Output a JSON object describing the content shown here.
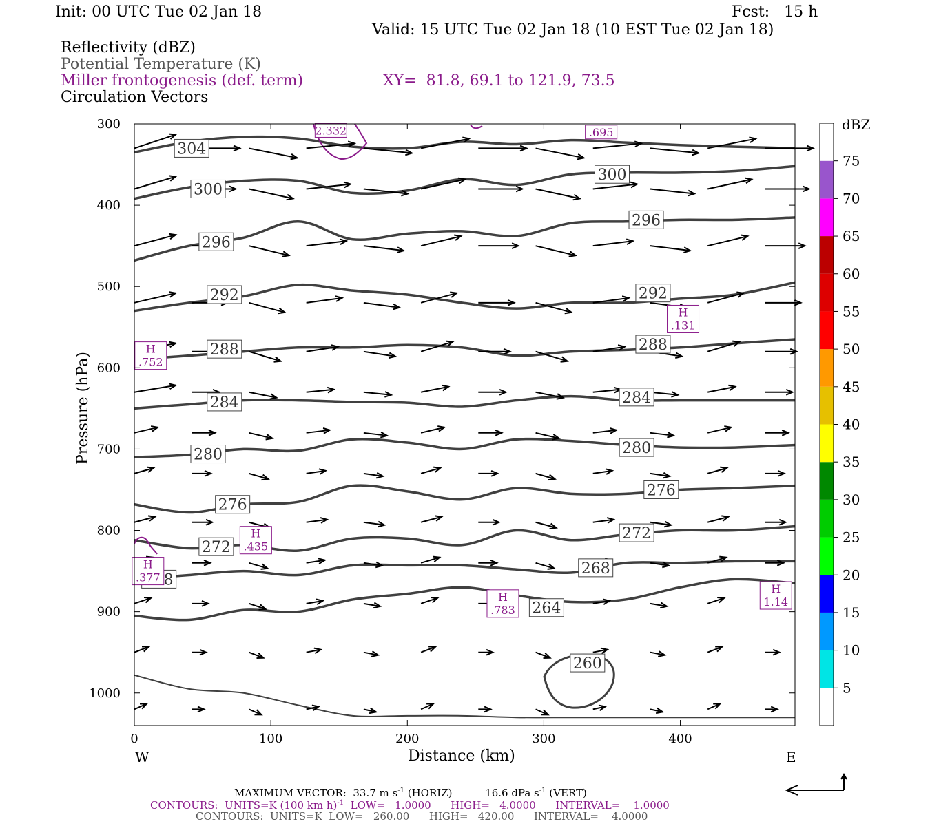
{
  "header": {
    "init": "Init: 00 UTC Tue 02 Jan 18",
    "fcst": "Fcst:   15 h",
    "valid": "Valid: 15 UTC Tue 02 Jan 18 (10 EST Tue 02 Jan 18)",
    "field1": "Reflectivity (dBZ)",
    "field2": "Potential Temperature (K)",
    "field3": "Miller frontogenesis (def. term)",
    "xy": "XY=  81.8, 69.1 to 121.9, 73.5",
    "field4": "Circulation Vectors"
  },
  "colors": {
    "theta": "#404040",
    "fronto": "#8a1a8a",
    "vectors": "#000000"
  },
  "chart_data": {
    "type": "line",
    "xlabel": "Distance (km)",
    "ylabel": "Pressure (hPa)",
    "xlim": [
      0,
      484
    ],
    "ylim": [
      1040,
      300
    ],
    "y_scale": "linear",
    "x_ticks": [
      "0",
      "100",
      "200",
      "300",
      "400"
    ],
    "y_ticks": [
      "300",
      "400",
      "500",
      "600",
      "700",
      "800",
      "900",
      "1000"
    ],
    "x_end_labels": {
      "left": "W",
      "right": "E"
    },
    "theta_contours": [
      {
        "value": 304,
        "label": "304",
        "x": [
          0,
          40,
          80,
          120,
          160,
          200,
          240,
          280,
          320,
          360,
          400,
          440,
          484
        ],
        "y": [
          335,
          322,
          316,
          318,
          328,
          330,
          322,
          325,
          320,
          323,
          326,
          328,
          330
        ]
      },
      {
        "value": 300,
        "label": "300",
        "x": [
          0,
          40,
          80,
          120,
          160,
          200,
          240,
          280,
          320,
          360,
          400,
          440,
          484
        ],
        "y": [
          392,
          378,
          370,
          370,
          385,
          382,
          368,
          375,
          362,
          360,
          360,
          358,
          352
        ]
      },
      {
        "value": 296,
        "label": "296",
        "x": [
          0,
          40,
          80,
          120,
          160,
          200,
          240,
          280,
          320,
          360,
          400,
          440,
          484
        ],
        "y": [
          468,
          450,
          440,
          420,
          442,
          435,
          432,
          438,
          422,
          420,
          418,
          418,
          415
        ]
      },
      {
        "value": 292,
        "label": "292",
        "x": [
          0,
          40,
          80,
          120,
          160,
          200,
          240,
          280,
          320,
          360,
          400,
          440,
          484
        ],
        "y": [
          530,
          520,
          512,
          498,
          505,
          510,
          520,
          527,
          520,
          520,
          515,
          510,
          495
        ]
      },
      {
        "value": 288,
        "label": "288",
        "x": [
          0,
          40,
          80,
          120,
          160,
          200,
          240,
          280,
          320,
          360,
          400,
          440,
          484
        ],
        "y": [
          590,
          585,
          580,
          575,
          575,
          572,
          575,
          585,
          580,
          578,
          575,
          570,
          565
        ]
      },
      {
        "value": 284,
        "label": "284",
        "x": [
          0,
          40,
          80,
          120,
          160,
          200,
          240,
          280,
          320,
          360,
          400,
          440,
          484
        ],
        "y": [
          650,
          645,
          640,
          640,
          642,
          643,
          648,
          640,
          635,
          640,
          640,
          640,
          640
        ]
      },
      {
        "value": 280,
        "label": "280",
        "x": [
          0,
          40,
          80,
          120,
          160,
          200,
          240,
          280,
          320,
          360,
          400,
          440,
          484
        ],
        "y": [
          710,
          707,
          700,
          702,
          688,
          692,
          700,
          688,
          690,
          695,
          698,
          698,
          695
        ]
      },
      {
        "value": 276,
        "label": "276",
        "x": [
          0,
          40,
          80,
          120,
          160,
          200,
          240,
          280,
          320,
          360,
          400,
          440,
          484
        ],
        "y": [
          768,
          778,
          768,
          765,
          745,
          752,
          762,
          748,
          755,
          755,
          750,
          748,
          745
        ]
      },
      {
        "value": 272,
        "label": "272",
        "x": [
          0,
          40,
          80,
          120,
          160,
          200,
          240,
          280,
          320,
          360,
          400,
          440,
          484
        ],
        "y": [
          812,
          822,
          818,
          825,
          810,
          810,
          818,
          800,
          812,
          805,
          800,
          800,
          795
        ]
      },
      {
        "value": 268,
        "label": "268",
        "x": [
          0,
          40,
          80,
          120,
          160,
          200,
          240,
          280,
          320,
          360,
          400,
          440,
          484
        ],
        "y": [
          860,
          855,
          850,
          855,
          843,
          843,
          843,
          848,
          852,
          840,
          840,
          838,
          838
        ]
      },
      {
        "value": 264,
        "label": "264",
        "x": [
          0,
          40,
          80,
          120,
          160,
          200,
          240,
          280,
          320,
          360,
          400,
          440,
          484
        ],
        "y": [
          905,
          910,
          898,
          900,
          885,
          878,
          870,
          880,
          888,
          885,
          870,
          860,
          865
        ]
      },
      {
        "value": 260,
        "label": "260",
        "x": [
          0,
          40,
          80,
          120,
          160,
          200,
          240,
          280,
          320,
          360,
          400,
          440,
          484
        ],
        "y": [
          978,
          995,
          1000,
          1015,
          1028,
          1028,
          1028,
          1030,
          1030,
          1030,
          1030,
          1030,
          1030
        ]
      }
    ],
    "theta_label_positions": [
      {
        "label": "304",
        "x": 42,
        "y": 330
      },
      {
        "label": "300",
        "x": 54,
        "y": 380
      },
      {
        "label": "296",
        "x": 60,
        "y": 445
      },
      {
        "label": "292",
        "x": 66,
        "y": 510
      },
      {
        "label": "288",
        "x": 66,
        "y": 577
      },
      {
        "label": "284",
        "x": 66,
        "y": 642
      },
      {
        "label": "280",
        "x": 54,
        "y": 706
      },
      {
        "label": "276",
        "x": 72,
        "y": 768
      },
      {
        "label": "272",
        "x": 60,
        "y": 820
      },
      {
        "label": "268",
        "x": 18,
        "y": 860
      },
      {
        "label": "300",
        "x": 350,
        "y": 362
      },
      {
        "label": "296",
        "x": 375,
        "y": 418
      },
      {
        "label": "292",
        "x": 380,
        "y": 508
      },
      {
        "label": "288",
        "x": 380,
        "y": 571
      },
      {
        "label": "284",
        "x": 368,
        "y": 636
      },
      {
        "label": "280",
        "x": 368,
        "y": 698
      },
      {
        "label": "276",
        "x": 386,
        "y": 750
      },
      {
        "label": "272",
        "x": 368,
        "y": 803
      },
      {
        "label": "268",
        "x": 338,
        "y": 846
      },
      {
        "label": "264",
        "x": 302,
        "y": 895
      },
      {
        "label": "260",
        "x": 332,
        "y": 963
      }
    ],
    "frontogenesis_maxima": [
      {
        "label": "H\n.752",
        "x": 12,
        "y": 585
      },
      {
        "label": "H\n.131",
        "x": 402,
        "y": 540
      },
      {
        "label": "H\n.435",
        "x": 89,
        "y": 812
      },
      {
        "label": "H\n.377",
        "x": 10,
        "y": 850
      },
      {
        "label": "H\n.783",
        "x": 270,
        "y": 890
      },
      {
        "label": "H\n1.14",
        "x": 470,
        "y": 880
      },
      {
        "label": "2.332",
        "x": 144,
        "y": 308
      },
      {
        "label": ".695",
        "x": 342,
        "y": 310
      }
    ],
    "colorbar": {
      "title": "dBZ",
      "labels": [
        "5",
        "10",
        "15",
        "20",
        "25",
        "30",
        "35",
        "40",
        "45",
        "50",
        "55",
        "60",
        "65",
        "70",
        "75"
      ],
      "colors": [
        "#ffffff",
        "#00e5e5",
        "#0099ff",
        "#0000ff",
        "#00ff00",
        "#00cc00",
        "#008800",
        "#ffff00",
        "#e6c000",
        "#ff9900",
        "#ff0000",
        "#dd0000",
        "#bb0000",
        "#ff00ff",
        "#9955cc",
        "#ffffff"
      ]
    },
    "vectors": {
      "columns_km": [
        0,
        42,
        84,
        126,
        168,
        210,
        252,
        294,
        336,
        378,
        420,
        462
      ],
      "rows_hPa": [
        330,
        380,
        450,
        520,
        580,
        630,
        680,
        730,
        790,
        840,
        890,
        950,
        1020
      ],
      "max_horiz": "33.7",
      "max_vert": "16.6"
    }
  },
  "footer": {
    "line1a": "MAXIMUM VECTOR:  33.7 m s",
    "line1b": "-1",
    "line1c": " (HORIZ)          16.6 dPa s",
    "line1d": "-1",
    "line1e": " (VERT)",
    "line2a": "CONTOURS:  UNITS=K (100 km h)",
    "line2b": "-1",
    "line2c": "  LOW=   1.0000      HIGH=   4.0000      INTERVAL=    1.0000",
    "line3": "CONTOURS:  UNITS=K  LOW=   260.00      HIGH=   420.00      INTERVAL=    4.0000"
  }
}
